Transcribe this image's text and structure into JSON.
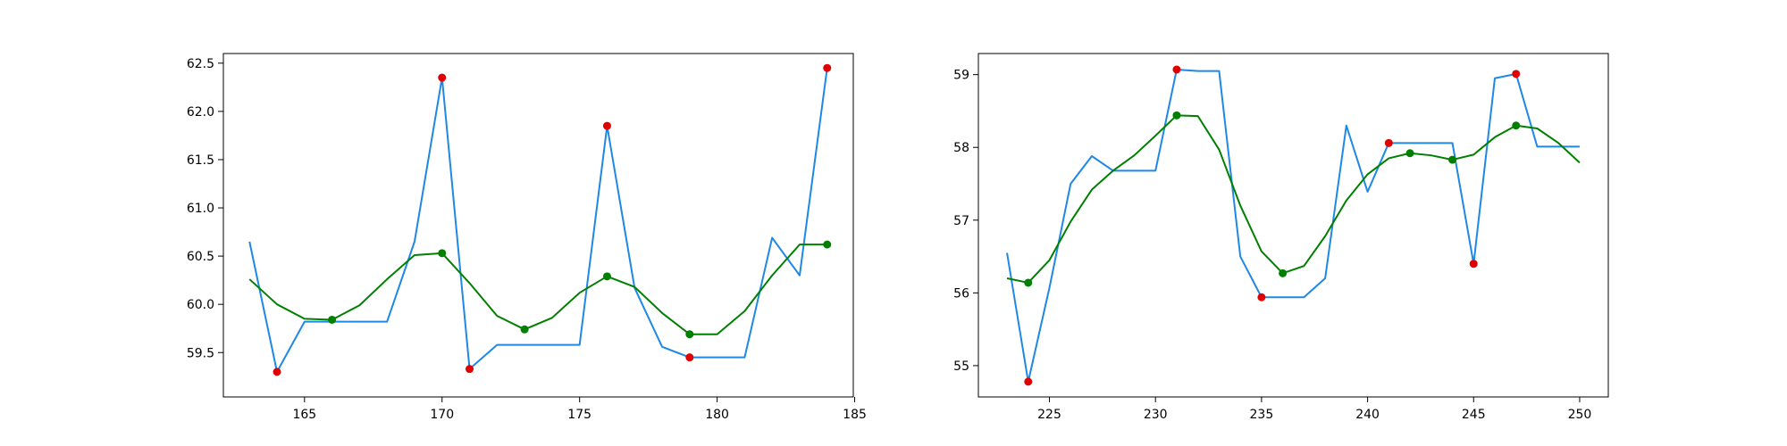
{
  "chart_data": [
    {
      "type": "line",
      "xlim": [
        162.05,
        184.95
      ],
      "ylim": [
        59.04,
        62.6
      ],
      "xticks": [
        165,
        170,
        175,
        180,
        185
      ],
      "yticks": [
        59.5,
        60.0,
        60.5,
        61.0,
        61.5,
        62.0,
        62.5
      ],
      "colors": {
        "raw": "#1e88e5",
        "smooth": "#008000",
        "red_markers": "#e00000",
        "green_markers": "#008000"
      },
      "series": [
        {
          "role": "raw",
          "x": [
            163,
            164,
            165,
            166,
            167,
            168,
            169,
            170,
            171,
            172,
            173,
            174,
            175,
            176,
            177,
            178,
            179,
            180,
            181,
            182,
            183,
            184
          ],
          "y": [
            60.65,
            59.3,
            59.82,
            59.82,
            59.82,
            59.82,
            60.65,
            62.35,
            59.33,
            59.58,
            59.58,
            59.58,
            59.58,
            61.85,
            60.17,
            59.56,
            59.45,
            59.45,
            59.45,
            60.69,
            60.3,
            62.45
          ]
        },
        {
          "role": "smooth",
          "x": [
            163,
            164,
            165,
            166,
            167,
            168,
            169,
            170,
            171,
            172,
            173,
            174,
            175,
            176,
            177,
            178,
            179,
            180,
            181,
            182,
            183,
            184
          ],
          "y": [
            60.26,
            60.0,
            59.85,
            59.84,
            59.99,
            60.26,
            60.51,
            60.53,
            60.22,
            59.88,
            59.74,
            59.86,
            60.12,
            60.29,
            60.18,
            59.91,
            59.69,
            59.69,
            59.93,
            60.3,
            60.62,
            60.62
          ]
        }
      ],
      "red_points": {
        "x": [
          164,
          170,
          171,
          176,
          179,
          184
        ],
        "y": [
          59.3,
          62.35,
          59.33,
          61.85,
          59.45,
          62.45
        ]
      },
      "green_points": {
        "x": [
          166,
          170,
          173,
          176,
          179,
          184
        ],
        "y": [
          59.84,
          60.53,
          59.74,
          60.29,
          59.69,
          60.62
        ]
      }
    },
    {
      "type": "line",
      "xlim": [
        221.65,
        251.35
      ],
      "ylim": [
        54.57,
        59.29
      ],
      "xticks": [
        225,
        230,
        235,
        240,
        245,
        250
      ],
      "yticks": [
        55,
        56,
        57,
        58,
        59
      ],
      "colors": {
        "raw": "#1e88e5",
        "smooth": "#008000",
        "red_markers": "#e00000",
        "green_markers": "#008000"
      },
      "series": [
        {
          "role": "raw",
          "x": [
            223,
            224,
            225,
            226,
            227,
            228,
            229,
            230,
            231,
            232,
            233,
            234,
            235,
            236,
            237,
            238,
            239,
            240,
            241,
            242,
            243,
            244,
            245,
            246,
            247,
            248,
            249,
            250
          ],
          "y": [
            56.55,
            54.78,
            56.07,
            57.5,
            57.88,
            57.68,
            57.68,
            57.68,
            59.07,
            59.05,
            59.05,
            56.5,
            55.94,
            55.94,
            55.94,
            56.2,
            58.3,
            57.39,
            58.06,
            58.06,
            58.06,
            58.06,
            56.4,
            58.95,
            59.01,
            58.01,
            58.01,
            58.01
          ]
        },
        {
          "role": "smooth",
          "x": [
            223,
            224,
            225,
            226,
            227,
            228,
            229,
            230,
            231,
            232,
            233,
            234,
            235,
            236,
            237,
            238,
            239,
            240,
            241,
            242,
            243,
            244,
            245,
            246,
            247,
            248,
            249,
            250
          ],
          "y": [
            56.2,
            56.14,
            56.45,
            56.98,
            57.42,
            57.68,
            57.89,
            58.16,
            58.44,
            58.43,
            57.97,
            57.2,
            56.57,
            56.27,
            56.37,
            56.78,
            57.27,
            57.63,
            57.85,
            57.92,
            57.89,
            57.83,
            57.9,
            58.14,
            58.3,
            58.26,
            58.06,
            57.79
          ]
        }
      ],
      "red_points": {
        "x": [
          224,
          231,
          235,
          241,
          245,
          247
        ],
        "y": [
          54.78,
          59.07,
          55.94,
          58.06,
          56.4,
          59.01
        ]
      },
      "green_points": {
        "x": [
          224,
          231,
          236,
          242,
          244,
          247
        ],
        "y": [
          56.14,
          58.44,
          56.27,
          57.92,
          57.83,
          58.3
        ]
      }
    }
  ]
}
